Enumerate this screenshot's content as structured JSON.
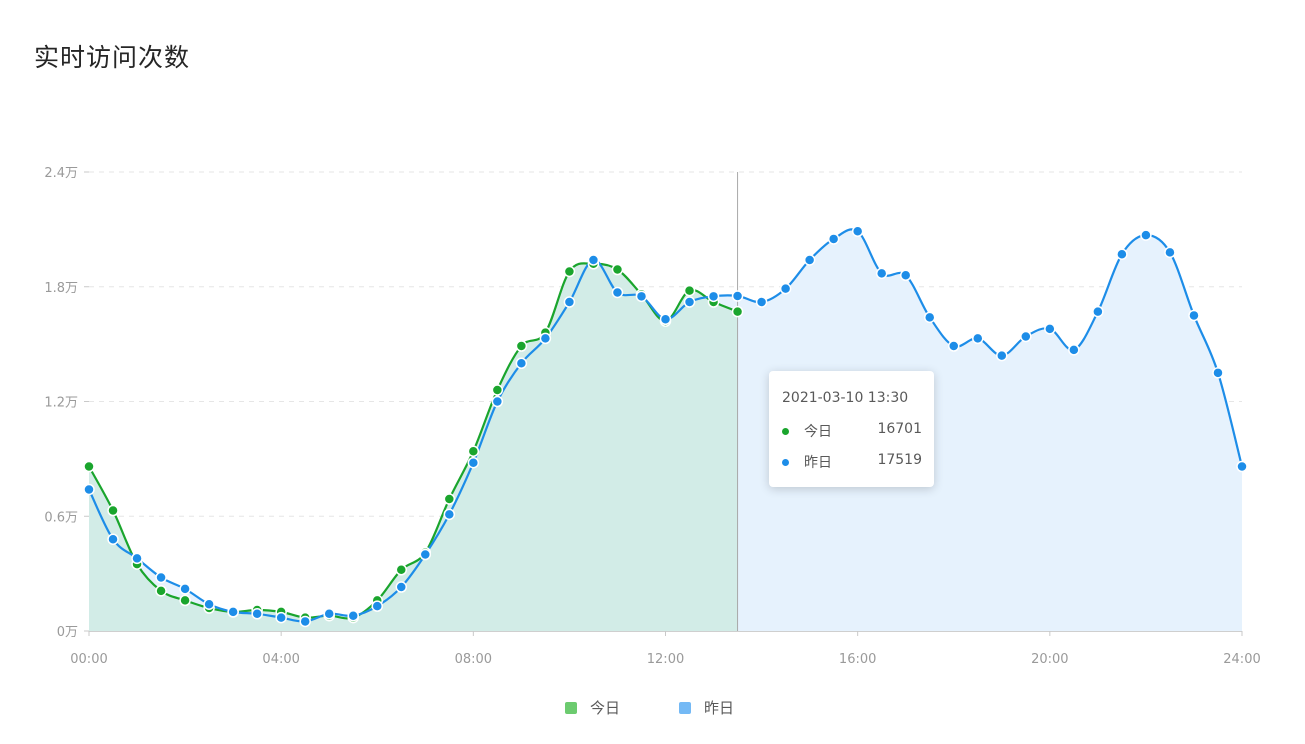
{
  "title": "实时访问次数",
  "chart_data": {
    "type": "area",
    "y_tick_labels": [
      "0万",
      "0.6万",
      "1.2万",
      "1.8万",
      "2.4万"
    ],
    "y_ticks": [
      0,
      6000,
      12000,
      18000,
      24000
    ],
    "ylim": [
      0,
      24000
    ],
    "x_tick_labels": [
      "00:00",
      "04:00",
      "08:00",
      "12:00",
      "16:00",
      "20:00",
      "24:00"
    ],
    "xlim_hours": [
      0,
      24
    ],
    "grid": "horizontal dashed",
    "legend_position": "bottom-center",
    "series": [
      {
        "name": "今日",
        "color": "#1aa52d",
        "fill": "#d1ebe6",
        "legend_color": "#6ccb6f",
        "x": [
          "00:00",
          "00:30",
          "01:00",
          "01:30",
          "02:00",
          "02:30",
          "03:00",
          "03:30",
          "04:00",
          "04:30",
          "05:00",
          "05:30",
          "06:00",
          "06:30",
          "07:00",
          "07:30",
          "08:00",
          "08:30",
          "09:00",
          "09:30",
          "10:00",
          "10:30",
          "11:00",
          "11:30",
          "12:00",
          "12:30",
          "13:00",
          "13:30"
        ],
        "values": [
          8600,
          6300,
          3500,
          2100,
          1600,
          1200,
          1000,
          1100,
          1000,
          700,
          800,
          700,
          1600,
          3200,
          4100,
          6900,
          9400,
          12600,
          14900,
          15600,
          18800,
          19200,
          18900,
          17600,
          16200,
          17800,
          17200,
          16701
        ]
      },
      {
        "name": "昨日",
        "color": "#1d8de8",
        "fill": "#e6f2fd",
        "legend_color": "#74b9f5",
        "x": [
          "00:00",
          "00:30",
          "01:00",
          "01:30",
          "02:00",
          "02:30",
          "03:00",
          "03:30",
          "04:00",
          "04:30",
          "05:00",
          "05:30",
          "06:00",
          "06:30",
          "07:00",
          "07:30",
          "08:00",
          "08:30",
          "09:00",
          "09:30",
          "10:00",
          "10:30",
          "11:00",
          "11:30",
          "12:00",
          "12:30",
          "13:00",
          "13:30",
          "14:00",
          "14:30",
          "15:00",
          "15:30",
          "16:00",
          "16:30",
          "17:00",
          "17:30",
          "18:00",
          "18:30",
          "19:00",
          "19:30",
          "20:00",
          "20:30",
          "21:00",
          "21:30",
          "22:00",
          "22:30",
          "23:00",
          "23:30",
          "24:00"
        ],
        "values": [
          7400,
          4800,
          3800,
          2800,
          2200,
          1400,
          1000,
          900,
          700,
          500,
          900,
          800,
          1300,
          2300,
          4000,
          6100,
          8800,
          12000,
          14000,
          15300,
          17200,
          19400,
          17700,
          17500,
          16300,
          17200,
          17500,
          17519,
          17200,
          17900,
          19400,
          20500,
          20900,
          18700,
          18600,
          16400,
          14900,
          15300,
          14400,
          15400,
          15800,
          14700,
          16700,
          19700,
          20700,
          19800,
          16500,
          13500,
          8600
        ]
      }
    ]
  },
  "tooltip": {
    "time": "2021-03-10 13:30",
    "rows": [
      {
        "name": "今日",
        "value": "16701",
        "color": "#1aa52d"
      },
      {
        "name": "昨日",
        "value": "17519",
        "color": "#1d8de8"
      }
    ]
  },
  "legend": [
    {
      "label": "今日",
      "color": "#6ccb6f"
    },
    {
      "label": "昨日",
      "color": "#74b9f5"
    }
  ]
}
